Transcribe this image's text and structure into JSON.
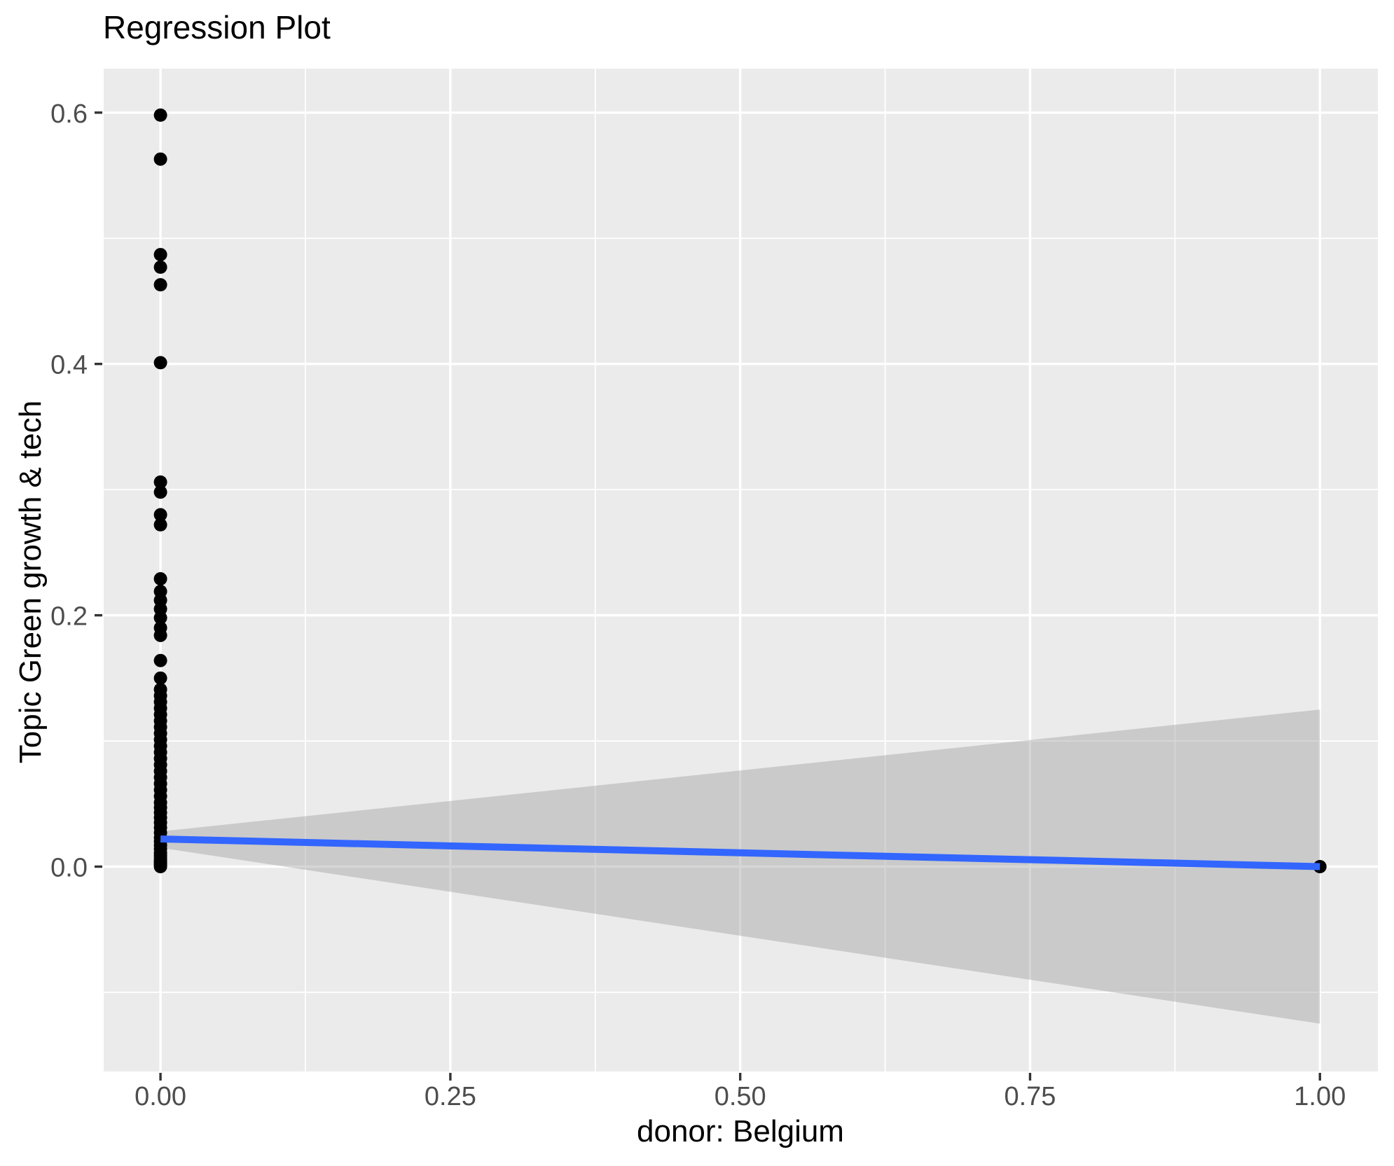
{
  "title": "Regression Plot",
  "axes": {
    "x_title": "donor: Belgium",
    "y_title": "Topic Green growth & tech"
  },
  "style": {
    "outer_bg": "#FFFFFF",
    "panel_bg": "#EBEBEB",
    "grid_color": "#FFFFFF",
    "tick_mark_color": "#333333",
    "tick_label_color": "#4D4D4D",
    "title_color": "#000000",
    "point_color": "#000000",
    "line_color": "#3366FF",
    "band_color": "rgba(153,153,153,0.4)"
  },
  "chart_data": {
    "type": "scatter",
    "title": "Regression Plot",
    "xlabel": "donor: Belgium",
    "ylabel": "Topic Green growth & tech",
    "xlim": [
      -0.049,
      1.05
    ],
    "ylim": [
      -0.163,
      0.635
    ],
    "grid": true,
    "legend": false,
    "x_ticks": {
      "values": [
        0,
        0.25,
        0.5,
        0.75,
        1.0
      ],
      "labels": [
        "0.00",
        "0.25",
        "0.50",
        "0.75",
        "1.00"
      ]
    },
    "y_ticks": {
      "values": [
        0,
        0.2,
        0.4,
        0.6
      ],
      "labels": [
        "0.0",
        "0.2",
        "0.4",
        "0.6"
      ]
    },
    "x_minor_ticks": [
      0.125,
      0.375,
      0.625,
      0.875
    ],
    "y_minor_ticks": [
      -0.1,
      0.1,
      0.3,
      0.5
    ],
    "series": [
      {
        "name": "observations",
        "geom": "point",
        "color": "#000000",
        "point_radius": 9.5,
        "points": [
          [
            0,
            0.598
          ],
          [
            0,
            0.563
          ],
          [
            0,
            0.487
          ],
          [
            0,
            0.477
          ],
          [
            0,
            0.463
          ],
          [
            0,
            0.401
          ],
          [
            0,
            0.306
          ],
          [
            0,
            0.298
          ],
          [
            0,
            0.28
          ],
          [
            0,
            0.272
          ],
          [
            0,
            0.229
          ],
          [
            0,
            0.219
          ],
          [
            0,
            0.212
          ],
          [
            0,
            0.205
          ],
          [
            0,
            0.198
          ],
          [
            0,
            0.19
          ],
          [
            0,
            0.184
          ],
          [
            0,
            0.164
          ],
          [
            0,
            0.15
          ],
          [
            0,
            0.141
          ],
          [
            0,
            0.136
          ],
          [
            0,
            0.131
          ],
          [
            0,
            0.126
          ],
          [
            0,
            0.121
          ],
          [
            0,
            0.116
          ],
          [
            0,
            0.111
          ],
          [
            0,
            0.106
          ],
          [
            0,
            0.101
          ],
          [
            0,
            0.096
          ],
          [
            0,
            0.091
          ],
          [
            0,
            0.086
          ],
          [
            0,
            0.081
          ],
          [
            0,
            0.076
          ],
          [
            0,
            0.071
          ],
          [
            0,
            0.066
          ],
          [
            0,
            0.061
          ],
          [
            0,
            0.056
          ],
          [
            0,
            0.051
          ],
          [
            0,
            0.047
          ],
          [
            0,
            0.043
          ],
          [
            0,
            0.039
          ],
          [
            0,
            0.035
          ],
          [
            0,
            0.031
          ],
          [
            0,
            0.027
          ],
          [
            0,
            0.023
          ],
          [
            0,
            0.02
          ],
          [
            0,
            0.017
          ],
          [
            0,
            0.014
          ],
          [
            0,
            0.011
          ],
          [
            0,
            0.009
          ],
          [
            0,
            0.007
          ],
          [
            0,
            0.005
          ],
          [
            0,
            0.004
          ],
          [
            0,
            0.003
          ],
          [
            0,
            0.002
          ],
          [
            0,
            0.001
          ],
          [
            0,
            0.0
          ],
          [
            1,
            0.0
          ]
        ]
      },
      {
        "name": "linear_fit",
        "geom": "line",
        "color": "#3366FF",
        "stroke_width": 10,
        "points": [
          [
            0,
            0.022
          ],
          [
            1,
            0.0
          ]
        ]
      },
      {
        "name": "confidence_band",
        "geom": "ribbon",
        "color": "rgba(153,153,153,0.4)",
        "points": [
          [
            0,
            0.028
          ],
          [
            1,
            0.125
          ],
          [
            1,
            -0.125
          ],
          [
            0,
            0.015
          ]
        ]
      }
    ]
  }
}
